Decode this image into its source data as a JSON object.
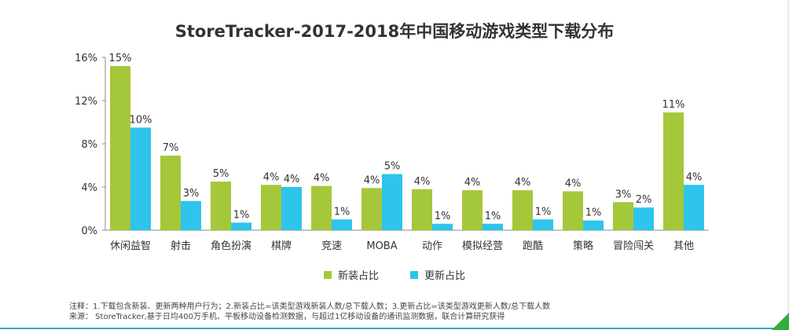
{
  "chart_data": {
    "type": "bar",
    "title": "StoreTracker-2017-2018年中国移动游戏类型下载分布",
    "categories": [
      "休闲益智",
      "射击",
      "角色扮演",
      "棋牌",
      "竞速",
      "MOBA",
      "动作",
      "模拟经营",
      "跑酷",
      "策略",
      "冒险闯关",
      "其他"
    ],
    "series": [
      {
        "name": "新装占比",
        "color": "#a5c73a",
        "values": [
          15.2,
          6.9,
          4.5,
          4.2,
          4.1,
          3.9,
          3.8,
          3.7,
          3.7,
          3.6,
          2.6,
          10.9
        ],
        "labels": [
          "15%",
          "7%",
          "5%",
          "4%",
          "4%",
          "4%",
          "4%",
          "4%",
          "4%",
          "4%",
          "3%",
          "11%"
        ]
      },
      {
        "name": "更新占比",
        "color": "#2ec4ec",
        "values": [
          9.5,
          2.7,
          0.7,
          4.0,
          1.0,
          5.2,
          0.6,
          0.6,
          1.0,
          0.9,
          2.1,
          4.2
        ],
        "labels": [
          "10%",
          "3%",
          "1%",
          "4%",
          "1%",
          "5%",
          "1%",
          "1%",
          "1%",
          "1%",
          "2%",
          "4%"
        ]
      }
    ],
    "ylim": [
      0,
      16
    ],
    "yticks": [
      0,
      4,
      8,
      12,
      16
    ],
    "ytick_labels": [
      "0%",
      "4%",
      "8%",
      "12%",
      "16%"
    ],
    "grid": false,
    "legend_position": "bottom"
  },
  "notes": {
    "line1": "注释：1.下载包含新装、更新两种用户行为；2.新装占比=该类型游戏新装人数/总下载人数；3.更新占比=该类型游戏更新人数/总下载人数",
    "line2": "来源： StoreTracker,基于日均400万手机、平板移动设备检测数据，与超过1亿移动设备的通讯监测数据，联合计算研究获得"
  }
}
